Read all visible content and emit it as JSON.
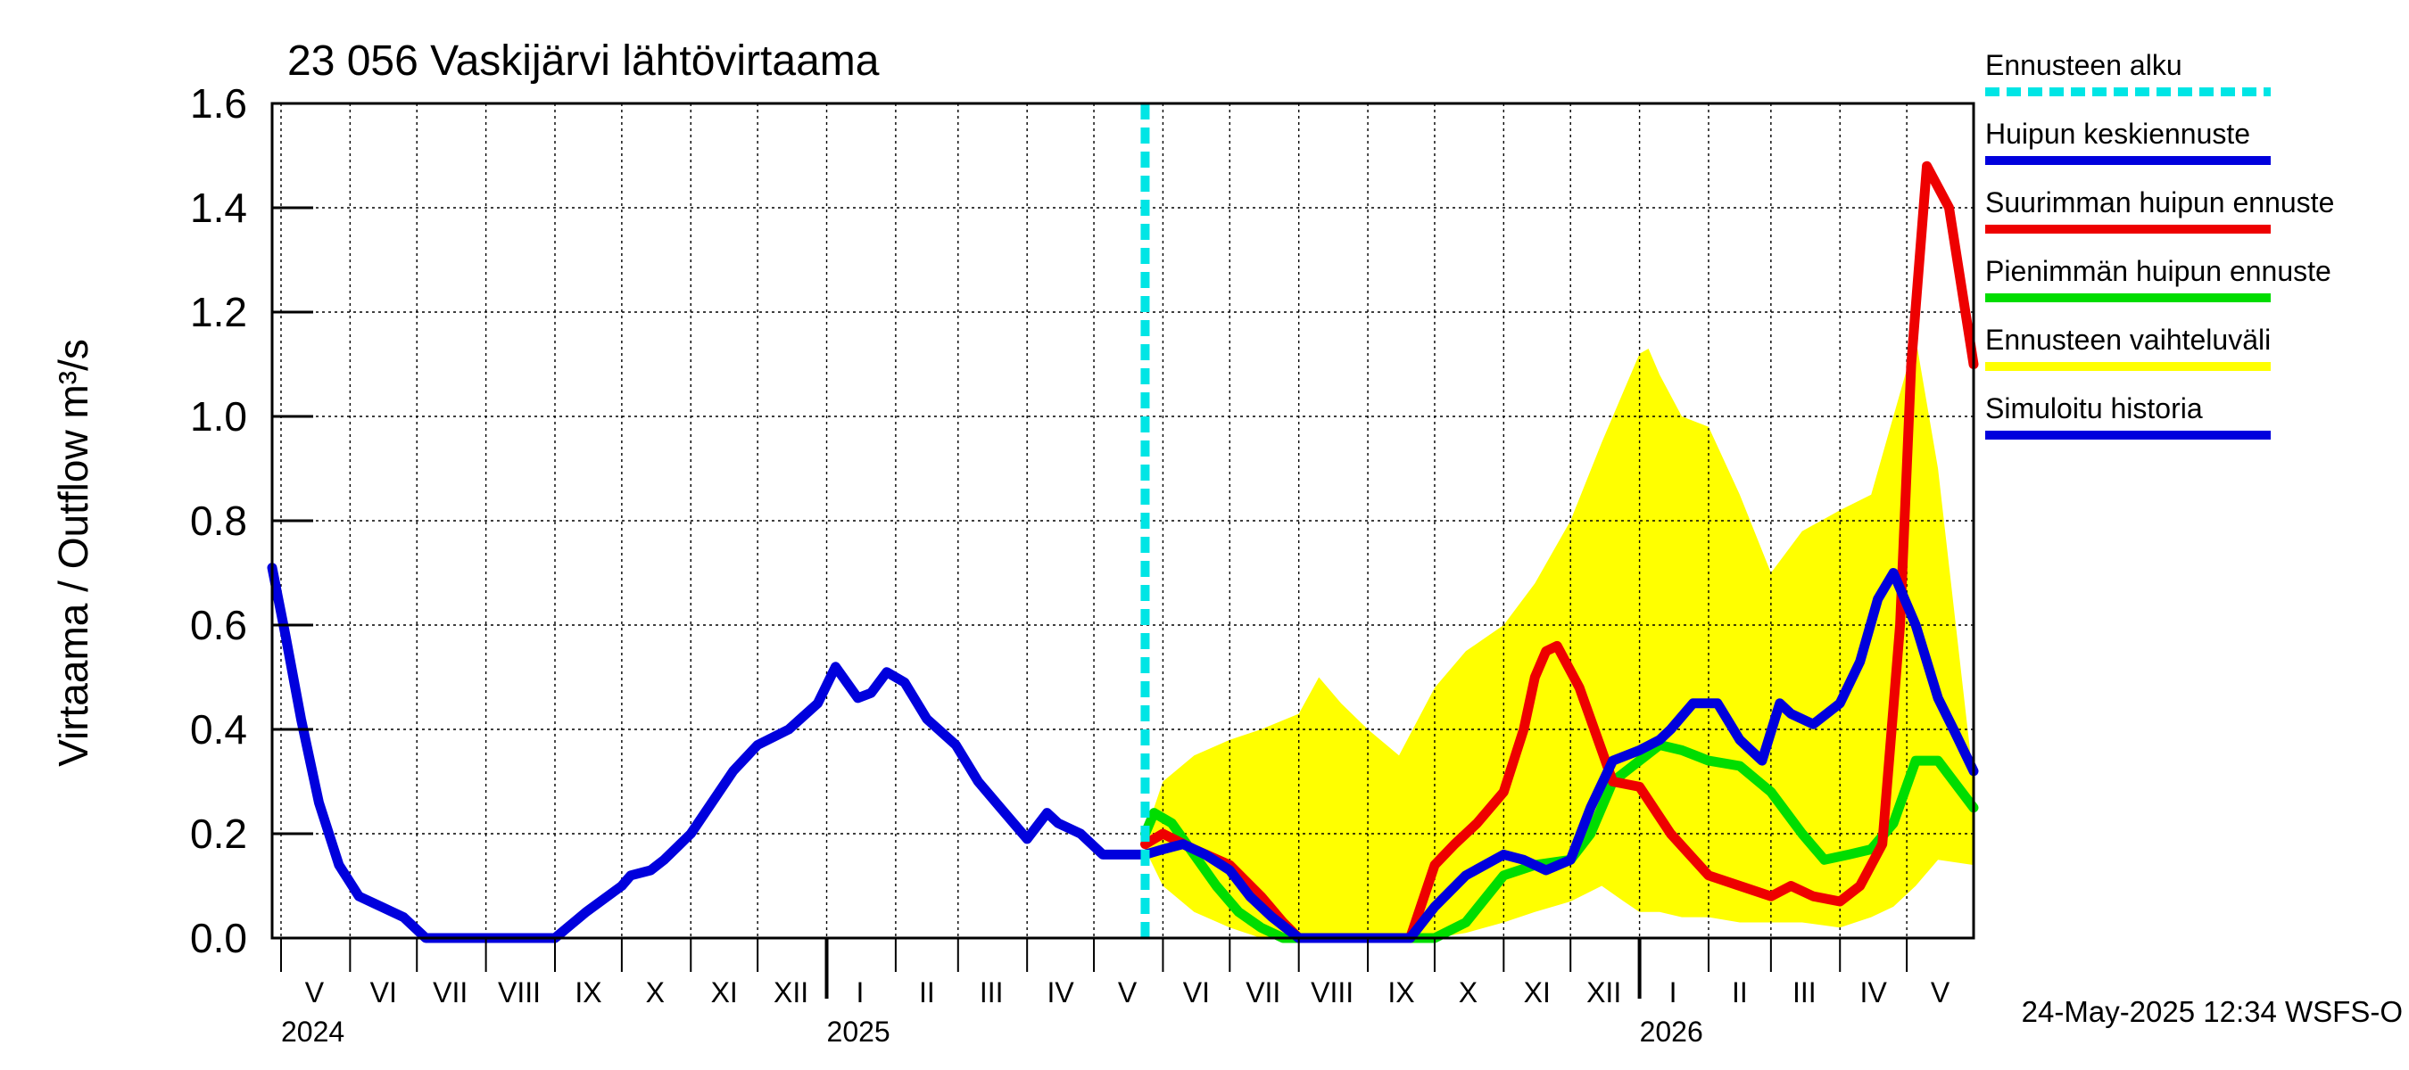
{
  "chart_data": {
    "type": "line",
    "title": "23 056 Vaskijärvi lähtövirtaama",
    "ylabel": "Virtaama / Outflow    m³/s",
    "xlabel": "",
    "ylim": [
      0,
      1.6
    ],
    "yticks": [
      "0.0",
      "0.2",
      "0.4",
      "0.6",
      "0.8",
      "1.0",
      "1.2",
      "1.4",
      "1.6"
    ],
    "xlim": [
      "2024-04-27",
      "2026-05-31"
    ],
    "month_labels": [
      {
        "label": "V",
        "date": "2024-05-16"
      },
      {
        "label": "VI",
        "date": "2024-06-16"
      },
      {
        "label": "VII",
        "date": "2024-07-16"
      },
      {
        "label": "VIII",
        "date": "2024-08-16"
      },
      {
        "label": "IX",
        "date": "2024-09-16"
      },
      {
        "label": "X",
        "date": "2024-10-16"
      },
      {
        "label": "XI",
        "date": "2024-11-16"
      },
      {
        "label": "XII",
        "date": "2024-12-16"
      },
      {
        "label": "I",
        "date": "2025-01-16"
      },
      {
        "label": "II",
        "date": "2025-02-15"
      },
      {
        "label": "III",
        "date": "2025-03-16"
      },
      {
        "label": "IV",
        "date": "2025-04-16"
      },
      {
        "label": "V",
        "date": "2025-05-16"
      },
      {
        "label": "VI",
        "date": "2025-06-16"
      },
      {
        "label": "VII",
        "date": "2025-07-16"
      },
      {
        "label": "VIII",
        "date": "2025-08-16"
      },
      {
        "label": "IX",
        "date": "2025-09-16"
      },
      {
        "label": "X",
        "date": "2025-10-16"
      },
      {
        "label": "XI",
        "date": "2025-11-16"
      },
      {
        "label": "XII",
        "date": "2025-12-16"
      },
      {
        "label": "I",
        "date": "2026-01-16"
      },
      {
        "label": "II",
        "date": "2026-02-15"
      },
      {
        "label": "III",
        "date": "2026-03-16"
      },
      {
        "label": "IV",
        "date": "2026-04-16"
      },
      {
        "label": "V",
        "date": "2026-05-16"
      }
    ],
    "month_boundaries": [
      "2024-05-01",
      "2024-06-01",
      "2024-07-01",
      "2024-08-01",
      "2024-09-01",
      "2024-10-01",
      "2024-11-01",
      "2024-12-01",
      "2025-01-01",
      "2025-02-01",
      "2025-03-01",
      "2025-04-01",
      "2025-05-01",
      "2025-06-01",
      "2025-07-01",
      "2025-08-01",
      "2025-09-01",
      "2025-10-01",
      "2025-11-01",
      "2025-12-01",
      "2026-01-01",
      "2026-02-01",
      "2026-03-01",
      "2026-04-01",
      "2026-05-01"
    ],
    "year_labels": [
      {
        "label": "2024",
        "date": "2024-05-01"
      },
      {
        "label": "2025",
        "date": "2025-01-01"
      },
      {
        "label": "2026",
        "date": "2026-01-01"
      }
    ],
    "forecast_start": "2025-05-24",
    "grid": true,
    "legend_position": "right",
    "legend": [
      {
        "label": "Ennusteen alku",
        "color": "#00e5e5",
        "style": "dashed"
      },
      {
        "label": "Huipun keskiennuste",
        "color": "#0000dd",
        "style": "solid"
      },
      {
        "label": "Suurimman huipun ennuste",
        "color": "#ee0000",
        "style": "solid"
      },
      {
        "label": "Pienimmän huipun ennuste",
        "color": "#00dd00",
        "style": "solid"
      },
      {
        "label": "Ennusteen vaihteluväli",
        "color": "#ffff00",
        "style": "solid"
      },
      {
        "label": "Simuloitu historia",
        "color": "#0000dd",
        "style": "solid"
      }
    ],
    "series": [
      {
        "name": "Simuloitu historia",
        "color": "#0000dd",
        "x": [
          "2024-04-27",
          "2024-05-03",
          "2024-05-10",
          "2024-05-18",
          "2024-05-27",
          "2024-06-05",
          "2024-06-15",
          "2024-06-25",
          "2024-07-05",
          "2024-07-15",
          "2024-07-25",
          "2024-08-05",
          "2024-08-10",
          "2024-08-15",
          "2024-09-01",
          "2024-09-15",
          "2024-10-01",
          "2024-10-05",
          "2024-10-14",
          "2024-10-20",
          "2024-11-01",
          "2024-11-20",
          "2024-12-01",
          "2024-12-15",
          "2024-12-28",
          "2025-01-05",
          "2025-01-15",
          "2025-01-21",
          "2025-01-28",
          "2025-02-05",
          "2025-02-15",
          "2025-02-28",
          "2025-03-10",
          "2025-03-20",
          "2025-04-01",
          "2025-04-10",
          "2025-04-15",
          "2025-04-20",
          "2025-04-25",
          "2025-05-05",
          "2025-05-15",
          "2025-05-24"
        ],
        "y": [
          0.71,
          0.58,
          0.42,
          0.26,
          0.14,
          0.08,
          0.06,
          0.04,
          0.0,
          0.0,
          0.0,
          0.0,
          0.0,
          0.0,
          0.0,
          0.05,
          0.1,
          0.12,
          0.13,
          0.15,
          0.2,
          0.32,
          0.37,
          0.4,
          0.45,
          0.52,
          0.46,
          0.47,
          0.51,
          0.49,
          0.42,
          0.37,
          0.3,
          0.25,
          0.19,
          0.24,
          0.22,
          0.21,
          0.2,
          0.16,
          0.16,
          0.16
        ]
      },
      {
        "name": "Huipun keskiennuste",
        "color": "#0000dd",
        "x": [
          "2025-05-24",
          "2025-06-01",
          "2025-06-10",
          "2025-06-20",
          "2025-07-01",
          "2025-07-10",
          "2025-07-20",
          "2025-08-01",
          "2025-08-15",
          "2025-09-01",
          "2025-09-20",
          "2025-10-01",
          "2025-10-15",
          "2025-11-01",
          "2025-11-10",
          "2025-11-20",
          "2025-12-01",
          "2025-12-10",
          "2025-12-20",
          "2026-01-01",
          "2026-01-10",
          "2026-01-15",
          "2026-01-25",
          "2026-02-05",
          "2026-02-15",
          "2026-02-25",
          "2026-03-05",
          "2026-03-10",
          "2026-03-20",
          "2026-04-01",
          "2026-04-10",
          "2026-04-18",
          "2026-04-25",
          "2026-05-05",
          "2026-05-15",
          "2026-05-22",
          "2026-05-31"
        ],
        "y": [
          0.16,
          0.17,
          0.18,
          0.16,
          0.13,
          0.08,
          0.04,
          0.0,
          0.0,
          0.0,
          0.0,
          0.06,
          0.12,
          0.16,
          0.15,
          0.13,
          0.15,
          0.25,
          0.34,
          0.36,
          0.38,
          0.4,
          0.45,
          0.45,
          0.38,
          0.34,
          0.45,
          0.43,
          0.41,
          0.45,
          0.53,
          0.65,
          0.7,
          0.6,
          0.46,
          0.4,
          0.32
        ]
      },
      {
        "name": "Suurimman huipun ennuste",
        "color": "#ee0000",
        "x": [
          "2025-05-24",
          "2025-06-01",
          "2025-06-15",
          "2025-07-01",
          "2025-07-15",
          "2025-07-25",
          "2025-08-01",
          "2025-08-15",
          "2025-09-01",
          "2025-09-20",
          "2025-10-01",
          "2025-10-10",
          "2025-10-20",
          "2025-11-01",
          "2025-11-10",
          "2025-11-15",
          "2025-11-20",
          "2025-11-25",
          "2025-12-05",
          "2025-12-15",
          "2025-12-20",
          "2026-01-01",
          "2026-01-15",
          "2026-02-01",
          "2026-02-15",
          "2026-03-01",
          "2026-03-10",
          "2026-03-20",
          "2026-04-01",
          "2026-04-10",
          "2026-04-20",
          "2026-04-28",
          "2026-05-03",
          "2026-05-10",
          "2026-05-20",
          "2026-05-31"
        ],
        "y": [
          0.18,
          0.2,
          0.17,
          0.14,
          0.08,
          0.03,
          0.0,
          0.0,
          0.0,
          0.0,
          0.14,
          0.18,
          0.22,
          0.28,
          0.4,
          0.5,
          0.55,
          0.56,
          0.48,
          0.36,
          0.3,
          0.29,
          0.2,
          0.12,
          0.1,
          0.08,
          0.1,
          0.08,
          0.07,
          0.1,
          0.18,
          0.6,
          1.1,
          1.48,
          1.4,
          1.1
        ]
      },
      {
        "name": "Pienimmän huipun ennuste",
        "color": "#00dd00",
        "x": [
          "2025-05-24",
          "2025-05-28",
          "2025-06-05",
          "2025-06-15",
          "2025-06-25",
          "2025-07-05",
          "2025-07-15",
          "2025-07-25",
          "2025-08-05",
          "2025-08-20",
          "2025-09-05",
          "2025-09-20",
          "2025-10-01",
          "2025-10-15",
          "2025-11-01",
          "2025-11-15",
          "2025-12-01",
          "2025-12-10",
          "2025-12-20",
          "2026-01-01",
          "2026-01-10",
          "2026-01-20",
          "2026-02-01",
          "2026-02-15",
          "2026-03-01",
          "2026-03-15",
          "2026-03-25",
          "2026-04-05",
          "2026-04-15",
          "2026-04-25",
          "2026-05-05",
          "2026-05-15",
          "2026-05-31"
        ],
        "y": [
          0.2,
          0.24,
          0.22,
          0.16,
          0.1,
          0.05,
          0.02,
          0.0,
          0.0,
          0.0,
          0.0,
          0.0,
          0.0,
          0.03,
          0.12,
          0.14,
          0.15,
          0.2,
          0.3,
          0.34,
          0.37,
          0.36,
          0.34,
          0.33,
          0.28,
          0.2,
          0.15,
          0.16,
          0.17,
          0.22,
          0.34,
          0.34,
          0.25
        ]
      }
    ],
    "band": {
      "name": "Ennusteen vaihteluväli",
      "color": "#ffff00",
      "x": [
        "2025-05-24",
        "2025-06-01",
        "2025-06-15",
        "2025-07-01",
        "2025-07-15",
        "2025-08-01",
        "2025-08-10",
        "2025-08-20",
        "2025-09-01",
        "2025-09-15",
        "2025-10-01",
        "2025-10-15",
        "2025-11-01",
        "2025-11-15",
        "2025-12-01",
        "2025-12-15",
        "2025-12-25",
        "2026-01-01",
        "2026-01-05",
        "2026-01-10",
        "2026-01-20",
        "2026-02-01",
        "2026-02-15",
        "2026-03-01",
        "2026-03-15",
        "2026-04-01",
        "2026-04-15",
        "2026-04-25",
        "2026-05-05",
        "2026-05-15",
        "2026-05-31"
      ],
      "upper": [
        0.2,
        0.3,
        0.35,
        0.38,
        0.4,
        0.43,
        0.5,
        0.45,
        0.4,
        0.35,
        0.48,
        0.55,
        0.6,
        0.68,
        0.8,
        0.95,
        1.05,
        1.12,
        1.13,
        1.08,
        1.0,
        0.98,
        0.85,
        0.7,
        0.78,
        0.82,
        0.85,
        1.0,
        1.15,
        0.9,
        0.3
      ],
      "lower": [
        0.17,
        0.1,
        0.05,
        0.02,
        0.0,
        0.0,
        0.0,
        0.0,
        0.0,
        0.0,
        0.0,
        0.01,
        0.03,
        0.05,
        0.07,
        0.1,
        0.07,
        0.05,
        0.05,
        0.05,
        0.04,
        0.04,
        0.03,
        0.03,
        0.03,
        0.02,
        0.04,
        0.06,
        0.1,
        0.15,
        0.14
      ]
    },
    "footer": "24-May-2025 12:34 WSFS-O"
  }
}
